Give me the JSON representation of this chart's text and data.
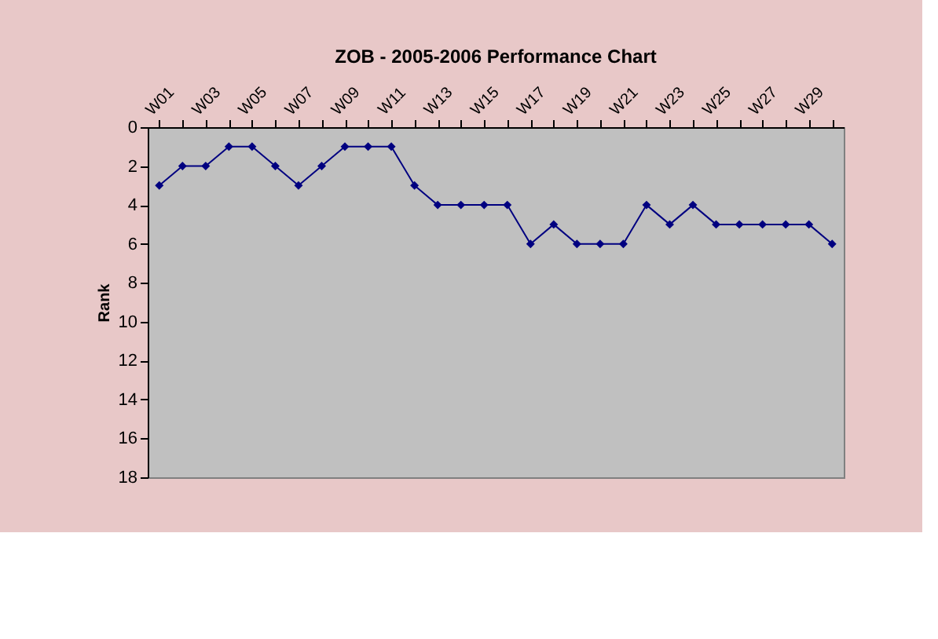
{
  "chart_data": {
    "type": "line",
    "title": "ZOB - 2005-2006 Performance Chart",
    "ylabel": "Rank",
    "categories": [
      "W01",
      null,
      "W03",
      null,
      "W05",
      null,
      "W07",
      null,
      "W09",
      null,
      "W11",
      null,
      "W13",
      null,
      "W15",
      null,
      "W17",
      null,
      "W19",
      null,
      "W21",
      null,
      "W23",
      null,
      "W25",
      null,
      "W27",
      null,
      "W29",
      null
    ],
    "series": [
      {
        "color": "#000080",
        "values": [
          3,
          2,
          2,
          1,
          1,
          2,
          3,
          2,
          1,
          1,
          1,
          3,
          4,
          4,
          4,
          4,
          6,
          5,
          6,
          6,
          6,
          4,
          5,
          4,
          5,
          5,
          5,
          5,
          5,
          6
        ]
      }
    ],
    "ylim": [
      18,
      0
    ],
    "yticks": [
      0,
      2,
      4,
      6,
      8,
      10,
      12,
      14,
      16,
      18
    ],
    "grid": false,
    "marker": "diamond",
    "line_style": "solid"
  }
}
